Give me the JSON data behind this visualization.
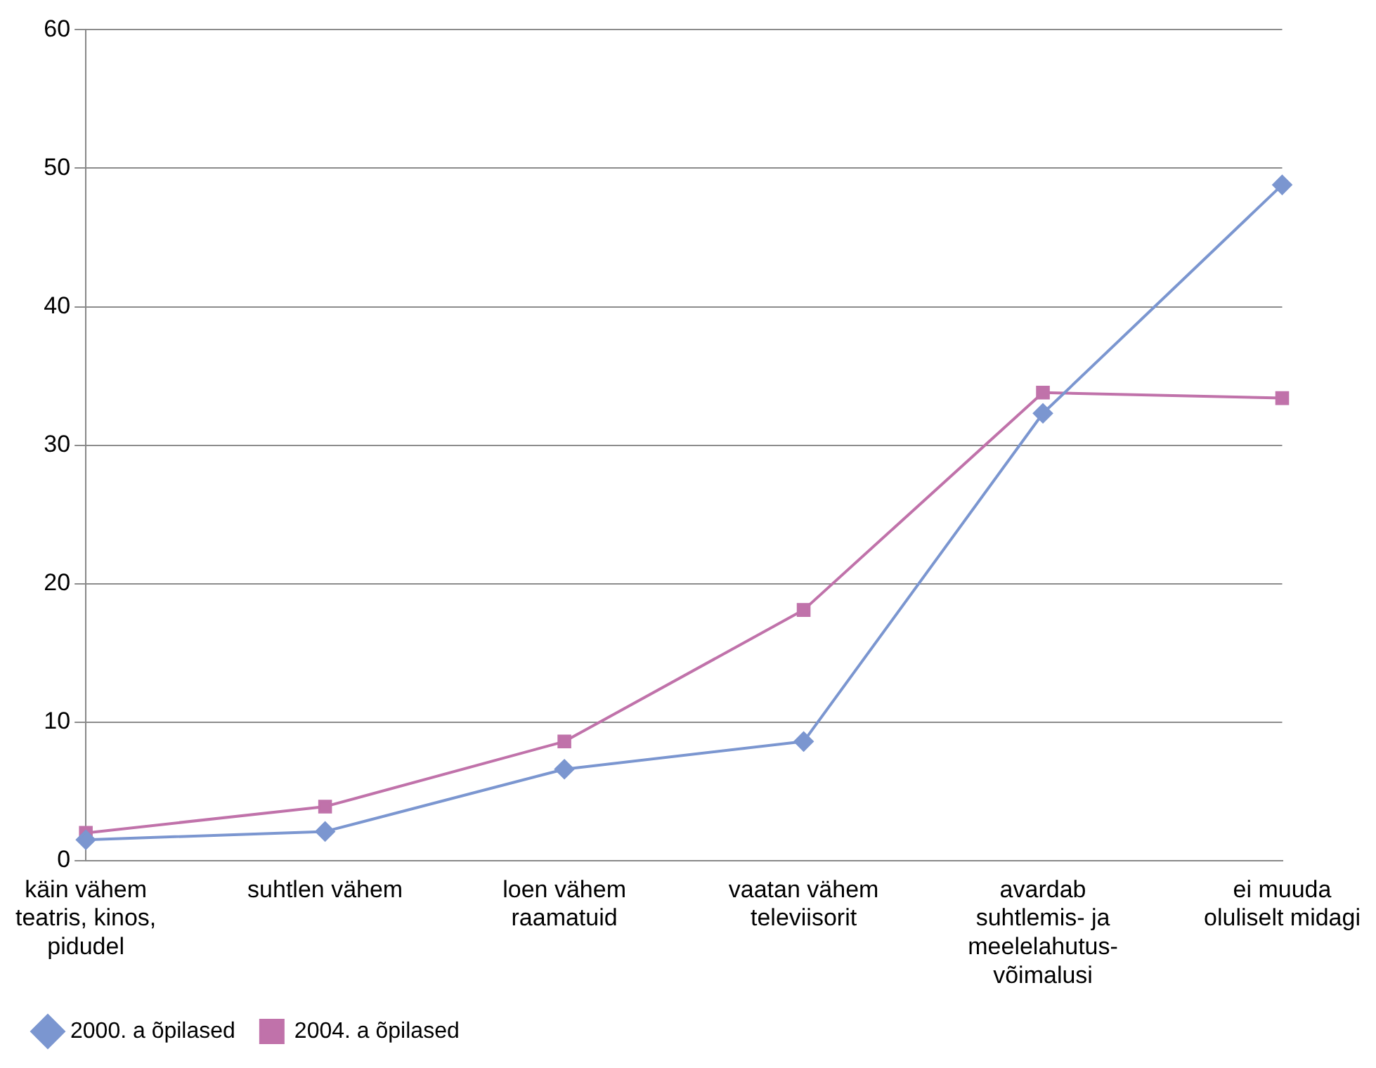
{
  "chart_data": {
    "type": "line",
    "categories": [
      "käin vähem teatris, kinos, pidudel",
      "suhtlen vähem",
      "loen vähem raamatuid",
      "vaatan vähem televiisorit",
      "avardab suhtlemis- ja meelelahutus-võimalusi",
      "ei muuda oluliselt midagi"
    ],
    "series": [
      {
        "name": "2000. a õpilased",
        "color": "#7b96d0",
        "marker": "diamond",
        "values": [
          1.5,
          2.1,
          6.6,
          8.6,
          32.3,
          48.8
        ]
      },
      {
        "name": "2004. a õpilased",
        "color": "#c072aa",
        "marker": "square",
        "values": [
          2.0,
          3.9,
          8.6,
          18.1,
          33.8,
          33.4
        ]
      }
    ],
    "ylim": [
      0,
      60
    ],
    "yticks": [
      0,
      10,
      20,
      30,
      40,
      50,
      60
    ],
    "grid": "y",
    "legend": "bottom left",
    "line_style": "solid"
  }
}
